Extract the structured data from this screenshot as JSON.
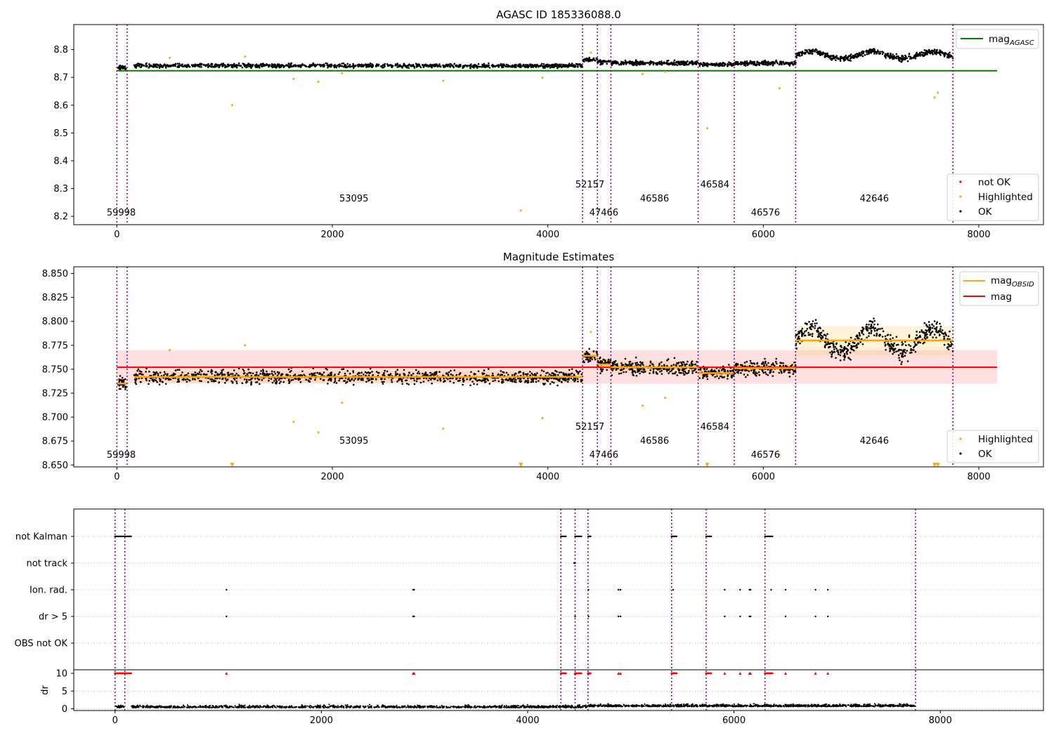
{
  "chart_data": [
    {
      "type": "scatter",
      "title": "AGASC ID 185336088.0",
      "xlim": [
        -400,
        8600
      ],
      "ylim": [
        8.17,
        8.89
      ],
      "xticks": [
        "0",
        "2000",
        "4000",
        "6000",
        "8000"
      ],
      "yticks": [
        "8.2",
        "8.3",
        "8.4",
        "8.5",
        "8.6",
        "8.7",
        "8.8"
      ],
      "grid": false,
      "legend_top": {
        "placement": "top-right",
        "entries": [
          {
            "label": "mag",
            "sub": "AGASC",
            "color": "#008000"
          }
        ]
      },
      "legend_bottom": {
        "placement": "bottom-right",
        "entries": [
          {
            "label": "not OK",
            "color": "#ff0000"
          },
          {
            "label": "Highlighted",
            "color": "#ffa500"
          },
          {
            "label": "OK",
            "color": "#000000"
          }
        ]
      },
      "agasc_mag": 8.724,
      "agasc_x_range": [
        -400,
        8170
      ],
      "boundaries": [
        0,
        95,
        4322,
        4460,
        4585,
        5395,
        5730,
        6300,
        7760
      ],
      "obsids": [
        {
          "id": "59998",
          "x": 40,
          "start": 0,
          "end": 95,
          "level": 8.735
        },
        {
          "id": "53095",
          "x": 2200,
          "start": 160,
          "end": 4322,
          "level": 8.742
        },
        {
          "id": "52157",
          "x": 4390,
          "start": 4322,
          "end": 4460,
          "level": 8.764
        },
        {
          "id": "47466",
          "x": 4520,
          "start": 4460,
          "end": 4585,
          "level": 8.755
        },
        {
          "id": "46586",
          "x": 4990,
          "start": 4585,
          "end": 5395,
          "level": 8.752
        },
        {
          "id": "46584",
          "x": 5550,
          "start": 5395,
          "end": 5730,
          "level": 8.746
        },
        {
          "id": "46576",
          "x": 6020,
          "start": 5730,
          "end": 6300,
          "level": 8.751
        },
        {
          "id": "42646",
          "x": 7030,
          "start": 6300,
          "end": 7760,
          "level": 8.78
        }
      ],
      "highlighted_points": [
        [
          1070,
          8.6
        ],
        [
          1640,
          8.695
        ],
        [
          1870,
          8.684
        ],
        [
          2090,
          8.715
        ],
        [
          3030,
          8.688
        ],
        [
          3750,
          8.221
        ],
        [
          3950,
          8.699
        ],
        [
          5480,
          8.517
        ],
        [
          6150,
          8.661
        ],
        [
          7590,
          8.628
        ],
        [
          7620,
          8.645
        ],
        [
          1190,
          8.775
        ],
        [
          490,
          8.77
        ],
        [
          4400,
          8.789
        ],
        [
          4880,
          8.712
        ],
        [
          5090,
          8.72
        ]
      ]
    },
    {
      "type": "scatter",
      "title": "Magnitude Estimates",
      "xlim": [
        -400,
        8600
      ],
      "ylim": [
        8.648,
        8.857
      ],
      "xticks": [
        "0",
        "2000",
        "4000",
        "6000",
        "8000"
      ],
      "yticks": [
        "8.650",
        "8.675",
        "8.700",
        "8.725",
        "8.750",
        "8.775",
        "8.800",
        "8.825",
        "8.850"
      ],
      "grid": false,
      "legend_top": {
        "placement": "top-right",
        "entries": [
          {
            "label": "mag",
            "sub": "OBSID",
            "color": "#ffa500"
          },
          {
            "label": "mag",
            "sub": "",
            "color": "#ff0000"
          }
        ]
      },
      "legend_bottom": {
        "placement": "bottom-right",
        "entries": [
          {
            "label": "Highlighted",
            "color": "#ffa500"
          },
          {
            "label": "OK",
            "color": "#000000"
          }
        ]
      },
      "mag": 8.752,
      "mag_band": [
        8.735,
        8.77
      ],
      "mag_x_range": [
        -400,
        8170
      ],
      "obsid_band_42646": [
        8.765,
        8.796
      ],
      "clipped_markers_x": [
        1070,
        3750,
        5480,
        7590,
        7620
      ],
      "clipped_marker_y": 8.65
    },
    {
      "type": "scatter",
      "title": "",
      "xlim": [
        -400,
        9000
      ],
      "xticks": [
        "0",
        "2000",
        "4000",
        "6000",
        "8000"
      ],
      "flag_rows": [
        "not Kalman",
        "not track",
        "Ion. rad.",
        "dr > 5",
        "OBS not OK"
      ],
      "flag_points": {
        "not Kalman": [
          [
            0,
            95
          ],
          [
            95,
            160
          ],
          [
            4322,
            4380
          ],
          [
            4460,
            4520
          ],
          [
            4585,
            4620
          ],
          [
            5395,
            5450
          ],
          [
            5730,
            5780
          ],
          [
            6300,
            6380
          ]
        ],
        "not track": [
          [
            4440,
            4470
          ]
        ],
        "Ion. rad.": [
          1080,
          2890,
          2900,
          4590,
          4880,
          4900,
          5410,
          5910,
          6060,
          6150,
          6160,
          6360,
          6500,
          6790,
          6910
        ],
        "dr > 5": [
          1080,
          2890,
          2900,
          4460,
          4590,
          4880,
          4900,
          5910,
          6060,
          6150,
          6160,
          6500,
          6790,
          6910
        ],
        "OBS not OK": []
      },
      "dr_yticks": [
        "0",
        "5",
        "10"
      ],
      "dr_ylabel": "dr",
      "dr_ylim": [
        -0.5,
        11
      ]
    }
  ]
}
